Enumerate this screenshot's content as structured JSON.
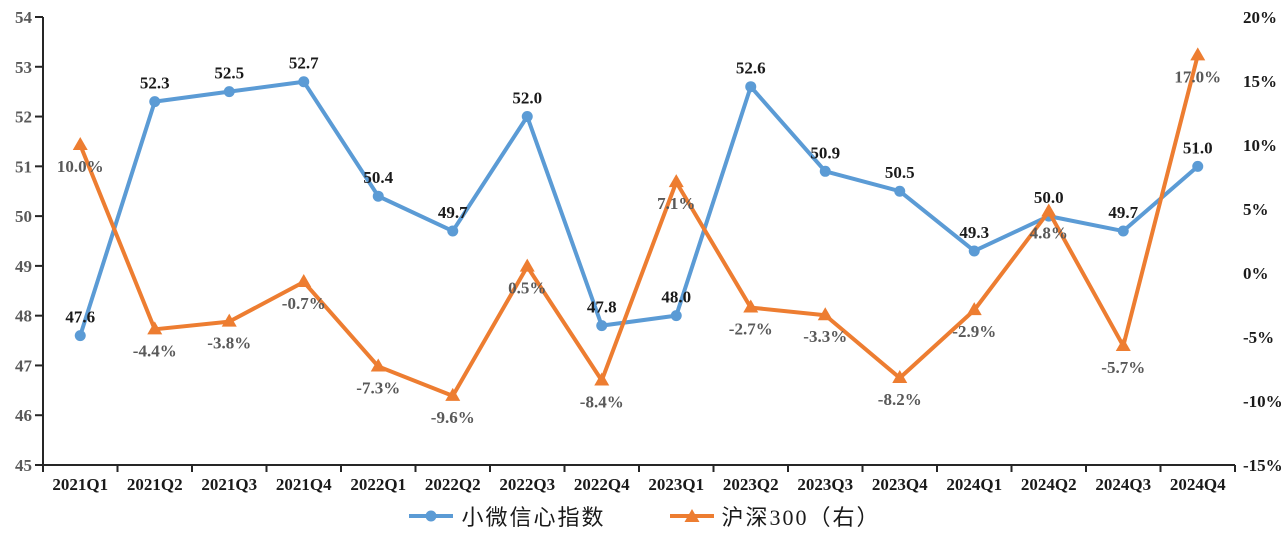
{
  "chart_data": {
    "type": "line",
    "categories": [
      "2021Q1",
      "2021Q2",
      "2021Q3",
      "2021Q4",
      "2022Q1",
      "2022Q2",
      "2022Q3",
      "2022Q4",
      "2023Q1",
      "2023Q2",
      "2023Q3",
      "2023Q4",
      "2024Q1",
      "2024Q2",
      "2024Q3",
      "2024Q4"
    ],
    "series": [
      {
        "name": "小微信心指数",
        "axis": "left",
        "color": "#5B9BD5",
        "marker": "circle",
        "values": [
          47.6,
          52.3,
          52.5,
          52.7,
          50.4,
          49.7,
          52.0,
          47.8,
          48.0,
          52.6,
          50.9,
          50.5,
          49.3,
          50.0,
          49.7,
          51.0
        ],
        "labels": [
          "47.6",
          "52.3",
          "52.5",
          "52.7",
          "50.4",
          "49.7",
          "52.0",
          "47.8",
          "48.0",
          "52.6",
          "50.9",
          "50.5",
          "49.3",
          "50.0",
          "49.7",
          "51.0"
        ],
        "label_color": "#1a1a1a"
      },
      {
        "name": "沪深300（右）",
        "axis": "right",
        "color": "#ED7D31",
        "marker": "triangle",
        "values": [
          10.0,
          -4.4,
          -3.8,
          -0.7,
          -7.3,
          -9.6,
          0.5,
          -8.4,
          7.1,
          -2.7,
          -3.3,
          -8.2,
          -2.9,
          4.8,
          -5.7,
          17.0
        ],
        "labels": [
          "10.0%",
          "-4.4%",
          "-3.8%",
          "-0.7%",
          "-7.3%",
          "-9.6%",
          "0.5%",
          "-8.4%",
          "7.1%",
          "-2.7%",
          "-3.3%",
          "-8.2%",
          "-2.9%",
          "4.8%",
          "-5.7%",
          "17.0%"
        ],
        "label_color": "#595959"
      }
    ],
    "left_axis": {
      "min": 45,
      "max": 54,
      "tick_values": [
        45,
        46,
        47,
        48,
        49,
        50,
        51,
        52,
        53,
        54
      ],
      "tick_labels": [
        "45",
        "46",
        "47",
        "48",
        "49",
        "50",
        "51",
        "52",
        "53",
        "54"
      ],
      "label_color": "#595959"
    },
    "right_axis": {
      "min": -15,
      "max": 20,
      "tick_values": [
        -15,
        -10,
        -5,
        0,
        5,
        10,
        15,
        20
      ],
      "tick_labels": [
        "-15%",
        "-10%",
        "-5%",
        "0%",
        "5%",
        "10%",
        "15%",
        "20%"
      ],
      "label_color": "#1a1a1a"
    },
    "x_axis_label_color": "#1a1a1a",
    "axis_line_color": "#262626",
    "legend_position": "bottom",
    "grid": false,
    "title": "",
    "xlabel": "",
    "ylabel": ""
  }
}
